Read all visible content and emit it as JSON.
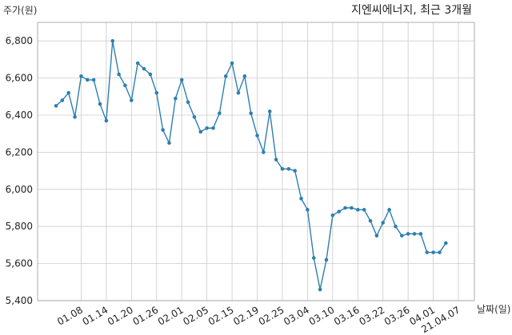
{
  "chart_data": {
    "type": "line",
    "title": "지엔씨에너지, 최근 3개월",
    "ylabel": "주가(원)",
    "xlabel": "날짜(일)",
    "ylim": [
      5400,
      6900
    ],
    "yticks": [
      "5,400",
      "5,600",
      "5,800",
      "6,000",
      "6,200",
      "6,400",
      "6,600",
      "6,800"
    ],
    "ytick_values": [
      5400,
      5600,
      5800,
      6000,
      6200,
      6400,
      6600,
      6800
    ],
    "grid": true,
    "line_color": "#2e7fb0",
    "grid_color": "#cccccc",
    "xtick_labels": [
      {
        "label": "01.08",
        "index": 4
      },
      {
        "label": "01.14",
        "index": 8
      },
      {
        "label": "01.20",
        "index": 12
      },
      {
        "label": "01.26",
        "index": 16
      },
      {
        "label": "02.01",
        "index": 20
      },
      {
        "label": "02.05",
        "index": 24
      },
      {
        "label": "02.15",
        "index": 28
      },
      {
        "label": "02.19",
        "index": 32
      },
      {
        "label": "02.25",
        "index": 36
      },
      {
        "label": "03.04",
        "index": 40
      },
      {
        "label": "03.10",
        "index": 44
      },
      {
        "label": "03.16",
        "index": 48
      },
      {
        "label": "03.22",
        "index": 52
      },
      {
        "label": "03.26",
        "index": 56
      },
      {
        "label": "04.01",
        "index": 60
      },
      {
        "label": "21.04.07",
        "index": 64
      }
    ],
    "values": [
      6450,
      6480,
      6520,
      6390,
      6610,
      6590,
      6590,
      6460,
      6370,
      6800,
      6620,
      6560,
      6480,
      6680,
      6650,
      6620,
      6520,
      6320,
      6250,
      6490,
      6590,
      6470,
      6390,
      6310,
      6330,
      6330,
      6410,
      6610,
      6680,
      6520,
      6610,
      6410,
      6290,
      6200,
      6420,
      6160,
      6110,
      6110,
      6100,
      5950,
      5890,
      5630,
      5460,
      5620,
      5860,
      5880,
      5900,
      5900,
      5890,
      5890,
      5830,
      5750,
      5820,
      5890,
      5800,
      5750,
      5760,
      5760,
      5760,
      5660,
      5660,
      5660,
      5710
    ]
  }
}
